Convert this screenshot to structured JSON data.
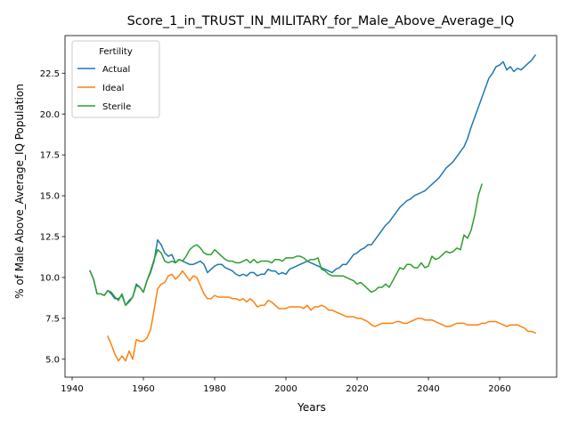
{
  "chart_data": {
    "type": "line",
    "title": "Score_1_in_TRUST_IN_MILITARY_for_Male_Above_Average_IQ",
    "xlabel": "Years",
    "ylabel": "% of Male Above_Average_IQ Population",
    "xlim": [
      1938,
      2076
    ],
    "ylim": [
      3.9,
      24.8
    ],
    "xticks": [
      1940,
      1960,
      1980,
      2000,
      2020,
      2040,
      2060
    ],
    "yticks": [
      5.0,
      7.5,
      10.0,
      12.5,
      15.0,
      17.5,
      20.0,
      22.5
    ],
    "xtick_labels": [
      "1940",
      "1960",
      "1980",
      "2000",
      "2020",
      "2040",
      "2060"
    ],
    "ytick_labels": [
      "5.0",
      "7.5",
      "10.0",
      "12.5",
      "15.0",
      "17.5",
      "20.0",
      "22.5"
    ],
    "grid": false,
    "legend": {
      "title": "Fertility",
      "placement": "upper-left"
    },
    "series": [
      {
        "name": "Actual",
        "color": "#1f77b4",
        "x": [
          1945,
          1946,
          1947,
          1948,
          1949,
          1950,
          1951,
          1952,
          1953,
          1954,
          1955,
          1956,
          1957,
          1958,
          1959,
          1960,
          1961,
          1962,
          1963,
          1964,
          1965,
          1966,
          1967,
          1968,
          1969,
          1970,
          1971,
          1972,
          1973,
          1974,
          1975,
          1976,
          1977,
          1978,
          1979,
          1980,
          1981,
          1982,
          1983,
          1984,
          1985,
          1986,
          1987,
          1988,
          1989,
          1990,
          1991,
          1992,
          1993,
          1994,
          1995,
          1996,
          1997,
          1998,
          1999,
          2000,
          2001,
          2002,
          2003,
          2004,
          2005,
          2006,
          2007,
          2008,
          2009,
          2010,
          2011,
          2012,
          2013,
          2014,
          2015,
          2016,
          2017,
          2018,
          2019,
          2020,
          2021,
          2022,
          2023,
          2024,
          2025,
          2026,
          2027,
          2028,
          2029,
          2030,
          2031,
          2032,
          2033,
          2034,
          2035,
          2036,
          2037,
          2038,
          2039,
          2040,
          2041,
          2042,
          2043,
          2044,
          2045,
          2046,
          2047,
          2048,
          2049,
          2050,
          2051,
          2052,
          2053,
          2054,
          2055,
          2056,
          2057,
          2058,
          2059,
          2060,
          2061,
          2062,
          2063,
          2064,
          2065,
          2066,
          2067,
          2068,
          2069,
          2070
        ],
        "values": [
          10.4,
          9.9,
          9.0,
          9.0,
          8.9,
          9.2,
          9.0,
          8.7,
          8.7,
          8.9,
          8.3,
          8.6,
          8.8,
          9.6,
          9.4,
          9.1,
          9.8,
          10.3,
          11.0,
          12.3,
          12.0,
          11.5,
          11.3,
          11.4,
          10.9,
          11.1,
          11.0,
          10.9,
          10.8,
          10.8,
          10.9,
          11.0,
          10.8,
          10.3,
          10.5,
          10.7,
          10.8,
          10.8,
          10.6,
          10.5,
          10.4,
          10.2,
          10.1,
          10.2,
          10.1,
          10.3,
          10.3,
          10.1,
          10.2,
          10.2,
          10.5,
          10.4,
          10.4,
          10.2,
          10.3,
          10.2,
          10.5,
          10.6,
          10.7,
          10.8,
          10.9,
          11.0,
          10.9,
          10.8,
          10.7,
          10.6,
          10.5,
          10.4,
          10.3,
          10.5,
          10.6,
          10.8,
          10.8,
          11.1,
          11.4,
          11.5,
          11.7,
          11.8,
          12.0,
          12.0,
          12.3,
          12.6,
          12.9,
          13.2,
          13.4,
          13.7,
          14.0,
          14.3,
          14.5,
          14.7,
          14.8,
          15.0,
          15.1,
          15.2,
          15.3,
          15.5,
          15.7,
          15.9,
          16.1,
          16.4,
          16.7,
          16.9,
          17.1,
          17.4,
          17.7,
          18.0,
          18.5,
          19.2,
          19.8,
          20.4,
          21.0,
          21.6,
          22.2,
          22.5,
          22.9,
          23.0,
          23.2,
          22.7,
          22.9,
          22.6,
          22.8,
          22.7,
          22.9,
          23.1,
          23.3,
          23.6
        ]
      },
      {
        "name": "Ideal",
        "color": "#ff7f0e",
        "x": [
          1950,
          1951,
          1952,
          1953,
          1954,
          1955,
          1956,
          1957,
          1958,
          1959,
          1960,
          1961,
          1962,
          1963,
          1964,
          1965,
          1966,
          1967,
          1968,
          1969,
          1970,
          1971,
          1972,
          1973,
          1974,
          1975,
          1976,
          1977,
          1978,
          1979,
          1980,
          1981,
          1982,
          1983,
          1984,
          1985,
          1986,
          1987,
          1988,
          1989,
          1990,
          1991,
          1992,
          1993,
          1994,
          1995,
          1996,
          1997,
          1998,
          1999,
          2000,
          2001,
          2002,
          2003,
          2004,
          2005,
          2006,
          2007,
          2008,
          2009,
          2010,
          2011,
          2012,
          2013,
          2014,
          2015,
          2016,
          2017,
          2018,
          2019,
          2020,
          2021,
          2022,
          2023,
          2024,
          2025,
          2026,
          2027,
          2028,
          2029,
          2030,
          2031,
          2032,
          2033,
          2034,
          2035,
          2036,
          2037,
          2038,
          2039,
          2040,
          2041,
          2042,
          2043,
          2044,
          2045,
          2046,
          2047,
          2048,
          2049,
          2050,
          2051,
          2052,
          2053,
          2054,
          2055,
          2056,
          2057,
          2058,
          2059,
          2060,
          2061,
          2062,
          2063,
          2064,
          2065,
          2066,
          2067,
          2068,
          2069,
          2070
        ],
        "values": [
          6.4,
          5.9,
          5.3,
          4.9,
          5.2,
          4.9,
          5.5,
          5.0,
          6.2,
          6.1,
          6.1,
          6.3,
          6.8,
          8.0,
          9.3,
          9.6,
          9.7,
          10.1,
          10.2,
          9.9,
          10.1,
          10.4,
          10.1,
          9.8,
          10.1,
          10.0,
          9.5,
          9.0,
          8.7,
          8.7,
          8.9,
          8.8,
          8.8,
          8.8,
          8.8,
          8.7,
          8.7,
          8.6,
          8.7,
          8.5,
          8.7,
          8.5,
          8.2,
          8.3,
          8.3,
          8.6,
          8.5,
          8.3,
          8.1,
          8.1,
          8.1,
          8.2,
          8.2,
          8.2,
          8.2,
          8.1,
          8.3,
          8.0,
          8.2,
          8.2,
          8.3,
          8.2,
          8.0,
          8.0,
          7.9,
          7.8,
          7.7,
          7.6,
          7.6,
          7.6,
          7.5,
          7.5,
          7.4,
          7.3,
          7.1,
          7.0,
          7.1,
          7.2,
          7.2,
          7.2,
          7.2,
          7.3,
          7.3,
          7.2,
          7.2,
          7.3,
          7.4,
          7.5,
          7.5,
          7.4,
          7.4,
          7.4,
          7.3,
          7.2,
          7.1,
          7.0,
          7.0,
          7.1,
          7.2,
          7.2,
          7.2,
          7.1,
          7.1,
          7.1,
          7.1,
          7.2,
          7.2,
          7.3,
          7.3,
          7.3,
          7.2,
          7.1,
          7.0,
          7.1,
          7.1,
          7.1,
          7.0,
          6.9,
          6.7,
          6.7,
          6.6
        ]
      },
      {
        "name": "Sterile",
        "color": "#2ca02c",
        "x": [
          1945,
          1946,
          1947,
          1948,
          1949,
          1950,
          1951,
          1952,
          1953,
          1954,
          1955,
          1956,
          1957,
          1958,
          1959,
          1960,
          1961,
          1962,
          1963,
          1964,
          1965,
          1966,
          1967,
          1968,
          1969,
          1970,
          1971,
          1972,
          1973,
          1974,
          1975,
          1976,
          1977,
          1978,
          1979,
          1980,
          1981,
          1982,
          1983,
          1984,
          1985,
          1986,
          1987,
          1988,
          1989,
          1990,
          1991,
          1992,
          1993,
          1994,
          1995,
          1996,
          1997,
          1998,
          1999,
          2000,
          2001,
          2002,
          2003,
          2004,
          2005,
          2006,
          2007,
          2008,
          2009,
          2010,
          2011,
          2012,
          2013,
          2014,
          2015,
          2016,
          2017,
          2018,
          2019,
          2020,
          2021,
          2022,
          2023,
          2024,
          2025,
          2026,
          2027,
          2028,
          2029,
          2030,
          2031,
          2032,
          2033,
          2034,
          2035,
          2036,
          2037,
          2038,
          2039,
          2040,
          2041,
          2042,
          2043,
          2044,
          2045,
          2046,
          2047,
          2048,
          2049,
          2050,
          2051,
          2052,
          2053,
          2054,
          2055
        ],
        "values": [
          10.4,
          9.9,
          9.0,
          9.0,
          8.9,
          9.2,
          9.1,
          8.8,
          8.6,
          9.0,
          8.3,
          8.5,
          8.8,
          9.5,
          9.4,
          9.1,
          9.8,
          10.4,
          11.1,
          11.7,
          11.5,
          11.0,
          10.9,
          11.0,
          10.9,
          11.1,
          11.0,
          11.3,
          11.7,
          11.9,
          12.0,
          11.8,
          11.5,
          11.4,
          11.4,
          11.7,
          11.5,
          11.3,
          11.1,
          11.0,
          11.0,
          10.9,
          10.9,
          11.0,
          11.1,
          10.9,
          11.1,
          10.9,
          11.0,
          11.0,
          11.0,
          10.9,
          11.1,
          11.1,
          11.0,
          11.2,
          11.2,
          11.2,
          11.3,
          11.3,
          11.2,
          11.0,
          11.1,
          11.1,
          11.2,
          10.5,
          10.4,
          10.2,
          10.1,
          10.1,
          10.1,
          10.1,
          10.0,
          9.9,
          9.8,
          9.6,
          9.7,
          9.5,
          9.3,
          9.1,
          9.2,
          9.4,
          9.4,
          9.6,
          9.4,
          9.8,
          10.2,
          10.6,
          10.5,
          10.8,
          10.8,
          10.6,
          10.6,
          10.9,
          10.6,
          10.7,
          11.3,
          11.1,
          11.2,
          11.4,
          11.6,
          11.5,
          11.6,
          11.8,
          11.7,
          12.6,
          12.4,
          12.9,
          13.8,
          15.0,
          15.7
        ]
      }
    ]
  }
}
